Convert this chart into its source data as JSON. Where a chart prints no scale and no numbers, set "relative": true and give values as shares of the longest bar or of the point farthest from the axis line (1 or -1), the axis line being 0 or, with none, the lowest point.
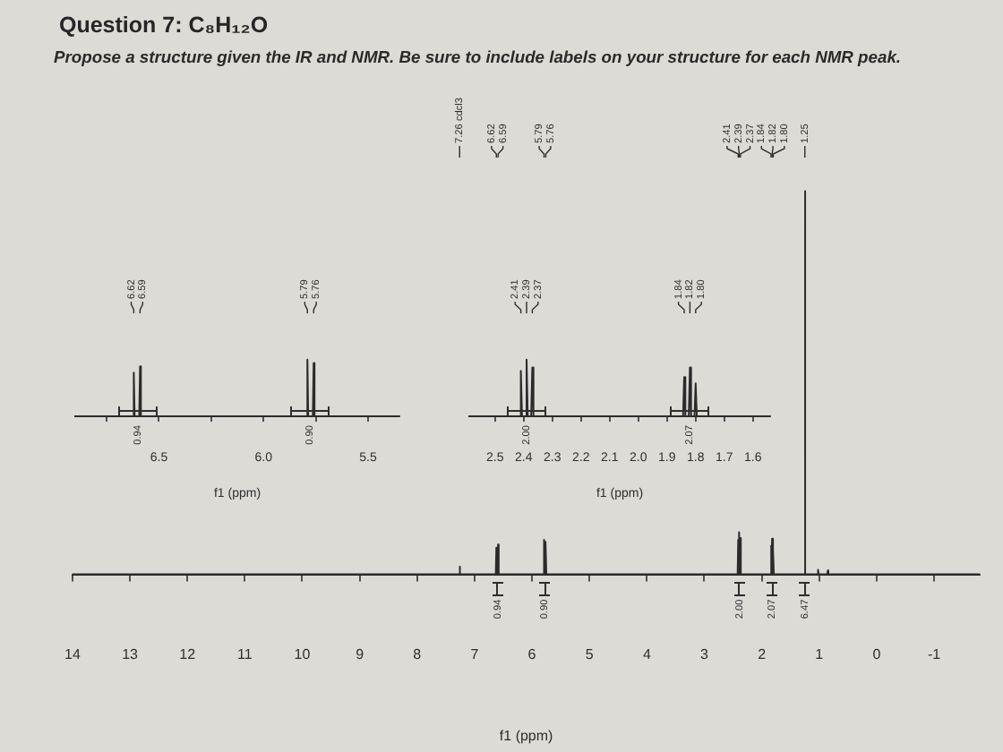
{
  "chart_data": [
    {
      "type": "line",
      "title": "Question 7: C₈H₁₂O",
      "subtitle": "Propose a structure given the IR and NMR. Be sure to include labels on your structure for each NMR peak.",
      "xlabel": "f1 (ppm)",
      "relative": true,
      "color": "#2b2b2b",
      "x": [
        14,
        7.27,
        7.26,
        7.25,
        6.63,
        6.62,
        6.61,
        6.6,
        6.59,
        6.58,
        5.8,
        5.79,
        5.78,
        5.77,
        5.76,
        5.75,
        2.42,
        2.41,
        2.4,
        2.39,
        2.38,
        2.37,
        2.36,
        1.85,
        1.84,
        1.83,
        1.82,
        1.81,
        1.8,
        1.79,
        1.26,
        1.25,
        1.24,
        1.03,
        1.02,
        1.01,
        0.86,
        0.85,
        0.84,
        -1.8
      ],
      "values": [
        0,
        0,
        0.02,
        0,
        0,
        0.07,
        0,
        0,
        0.078,
        0,
        0,
        0.09,
        0,
        0,
        0.085,
        0,
        0,
        0.09,
        0,
        0.11,
        0,
        0.095,
        0,
        0,
        0.075,
        0,
        0.093,
        0,
        0.065,
        0,
        0,
        1,
        0,
        0,
        0.012,
        0,
        0,
        0.01,
        0,
        0
      ],
      "xlim": [
        14,
        -1.8
      ],
      "xticks": [
        14,
        13,
        12,
        11,
        10,
        9,
        8,
        7,
        6,
        5,
        4,
        3,
        2,
        1,
        0,
        -1
      ],
      "annotations": [
        {
          "text": "7.26 cdcl3",
          "x": 7.26
        },
        {
          "text": "6.62",
          "x": 6.62
        },
        {
          "text": "6.59",
          "x": 6.59
        },
        {
          "text": "5.79",
          "x": 5.79
        },
        {
          "text": "5.76",
          "x": 5.76
        },
        {
          "text": "2.41",
          "x": 2.41
        },
        {
          "text": "2.39",
          "x": 2.39
        },
        {
          "text": "2.37",
          "x": 2.37
        },
        {
          "text": "1.84",
          "x": 1.84
        },
        {
          "text": "1.82",
          "x": 1.82
        },
        {
          "text": "1.80",
          "x": 1.8
        },
        {
          "text": "1.25",
          "x": 1.25
        },
        {
          "text": "0.94",
          "x": 6.6,
          "y": 0
        },
        {
          "text": "0.90",
          "x": 5.78,
          "y": 0
        },
        {
          "text": "2.00",
          "x": 2.39,
          "y": 0
        },
        {
          "text": "2.07",
          "x": 1.82,
          "y": 0
        },
        {
          "text": "6.47",
          "x": 1.25,
          "y": 0
        }
      ]
    },
    {
      "type": "line",
      "xlabel": "f1 (ppm)",
      "relative": true,
      "color": "#2b2b2b",
      "x": [
        6.9,
        6.624,
        6.62,
        6.616,
        6.594,
        6.59,
        6.586,
        5.794,
        5.79,
        5.786,
        5.764,
        5.76,
        5.756,
        5.35
      ],
      "values": [
        0,
        0,
        0.77,
        0,
        0,
        0.88,
        0,
        0,
        1,
        0,
        0,
        0.94,
        0,
        0
      ],
      "xlim": [
        6.9,
        5.35
      ],
      "xticks": [
        {
          "value": 6.75,
          "label": null
        },
        6.5,
        {
          "value": 6.25,
          "label": null
        },
        {
          "value": 6,
          "label": "6.0"
        },
        {
          "value": 5.75,
          "label": null
        },
        5.5
      ],
      "annotations": [
        {
          "text": "6.62",
          "x": 6.62
        },
        {
          "text": "6.59",
          "x": 6.59
        },
        {
          "text": "5.79",
          "x": 5.79
        },
        {
          "text": "5.76",
          "x": 5.76
        },
        {
          "text": "0.94",
          "x": 6.6,
          "y": 0
        },
        {
          "text": "0.90",
          "x": 5.78,
          "y": 0
        }
      ]
    },
    {
      "type": "line",
      "xlabel": "f1 (ppm)",
      "relative": true,
      "color": "#2b2b2b",
      "x": [
        2.59,
        2.414,
        2.41,
        2.406,
        2.394,
        2.39,
        2.386,
        2.374,
        2.37,
        2.366,
        1.844,
        1.84,
        1.836,
        1.824,
        1.82,
        1.816,
        1.804,
        1.8,
        1.796,
        1.54
      ],
      "values": [
        0,
        0,
        0.8,
        0,
        0,
        1,
        0,
        0,
        0.86,
        0,
        0,
        0.69,
        0,
        0,
        0.86,
        0,
        0,
        0.58,
        0,
        0
      ],
      "xlim": [
        2.59,
        1.54
      ],
      "xticks": [
        2.5,
        2.4,
        2.3,
        2.2,
        2.1,
        {
          "value": 2,
          "label": "2.0"
        },
        1.9,
        1.8,
        1.7,
        1.6
      ],
      "annotations": [
        {
          "text": "2.41",
          "x": 2.41
        },
        {
          "text": "2.39",
          "x": 2.39
        },
        {
          "text": "2.37",
          "x": 2.37
        },
        {
          "text": "1.84",
          "x": 1.84
        },
        {
          "text": "1.82",
          "x": 1.82
        },
        {
          "text": "1.80",
          "x": 1.8
        },
        {
          "text": "2.00",
          "x": 2.39,
          "y": 0
        },
        {
          "text": "2.07",
          "x": 1.82,
          "y": 0
        }
      ]
    }
  ]
}
